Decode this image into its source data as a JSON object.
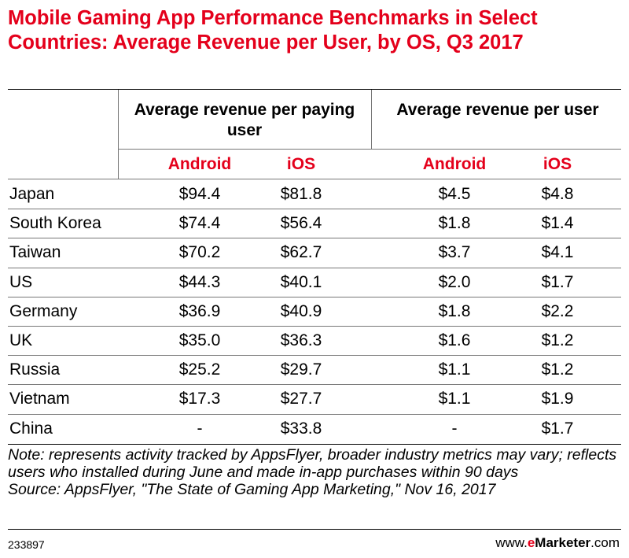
{
  "chart_data": {
    "type": "table",
    "title": "Mobile Gaming App Performance Benchmarks in Select Countries: Average Revenue per User, by OS, Q3 2017",
    "column_groups": [
      "Average revenue per paying user",
      "Average revenue per user"
    ],
    "sub_columns": [
      "Android",
      "iOS",
      "Android",
      "iOS"
    ],
    "rows": [
      {
        "country": "Japan",
        "values": [
          "$94.4",
          "$81.8",
          "$4.5",
          "$4.8"
        ]
      },
      {
        "country": "South Korea",
        "values": [
          "$74.4",
          "$56.4",
          "$1.8",
          "$1.4"
        ]
      },
      {
        "country": "Taiwan",
        "values": [
          "$70.2",
          "$62.7",
          "$3.7",
          "$4.1"
        ]
      },
      {
        "country": "US",
        "values": [
          "$44.3",
          "$40.1",
          "$2.0",
          "$1.7"
        ]
      },
      {
        "country": "Germany",
        "values": [
          "$36.9",
          "$40.9",
          "$1.8",
          "$2.2"
        ]
      },
      {
        "country": "UK",
        "values": [
          "$35.0",
          "$36.3",
          "$1.6",
          "$1.2"
        ]
      },
      {
        "country": "Russia",
        "values": [
          "$25.2",
          "$29.7",
          "$1.1",
          "$1.2"
        ]
      },
      {
        "country": "Vietnam",
        "values": [
          "$17.3",
          "$27.7",
          "$1.1",
          "$1.9"
        ]
      },
      {
        "country": "China",
        "values": [
          "-",
          "$33.8",
          "-",
          "$1.7"
        ]
      }
    ],
    "note": "Note: represents activity tracked by AppsFlyer, broader industry metrics may vary; reflects users who installed during June and made in-app purchases within 90 days",
    "source": "Source: AppsFlyer, \"The State of Gaming App Marketing,\" Nov 16, 2017"
  },
  "footer": {
    "chart_id": "233897",
    "brand_prefix": "www.",
    "brand_e": "e",
    "brand_name": "Marketer",
    "brand_suffix": ".com"
  }
}
